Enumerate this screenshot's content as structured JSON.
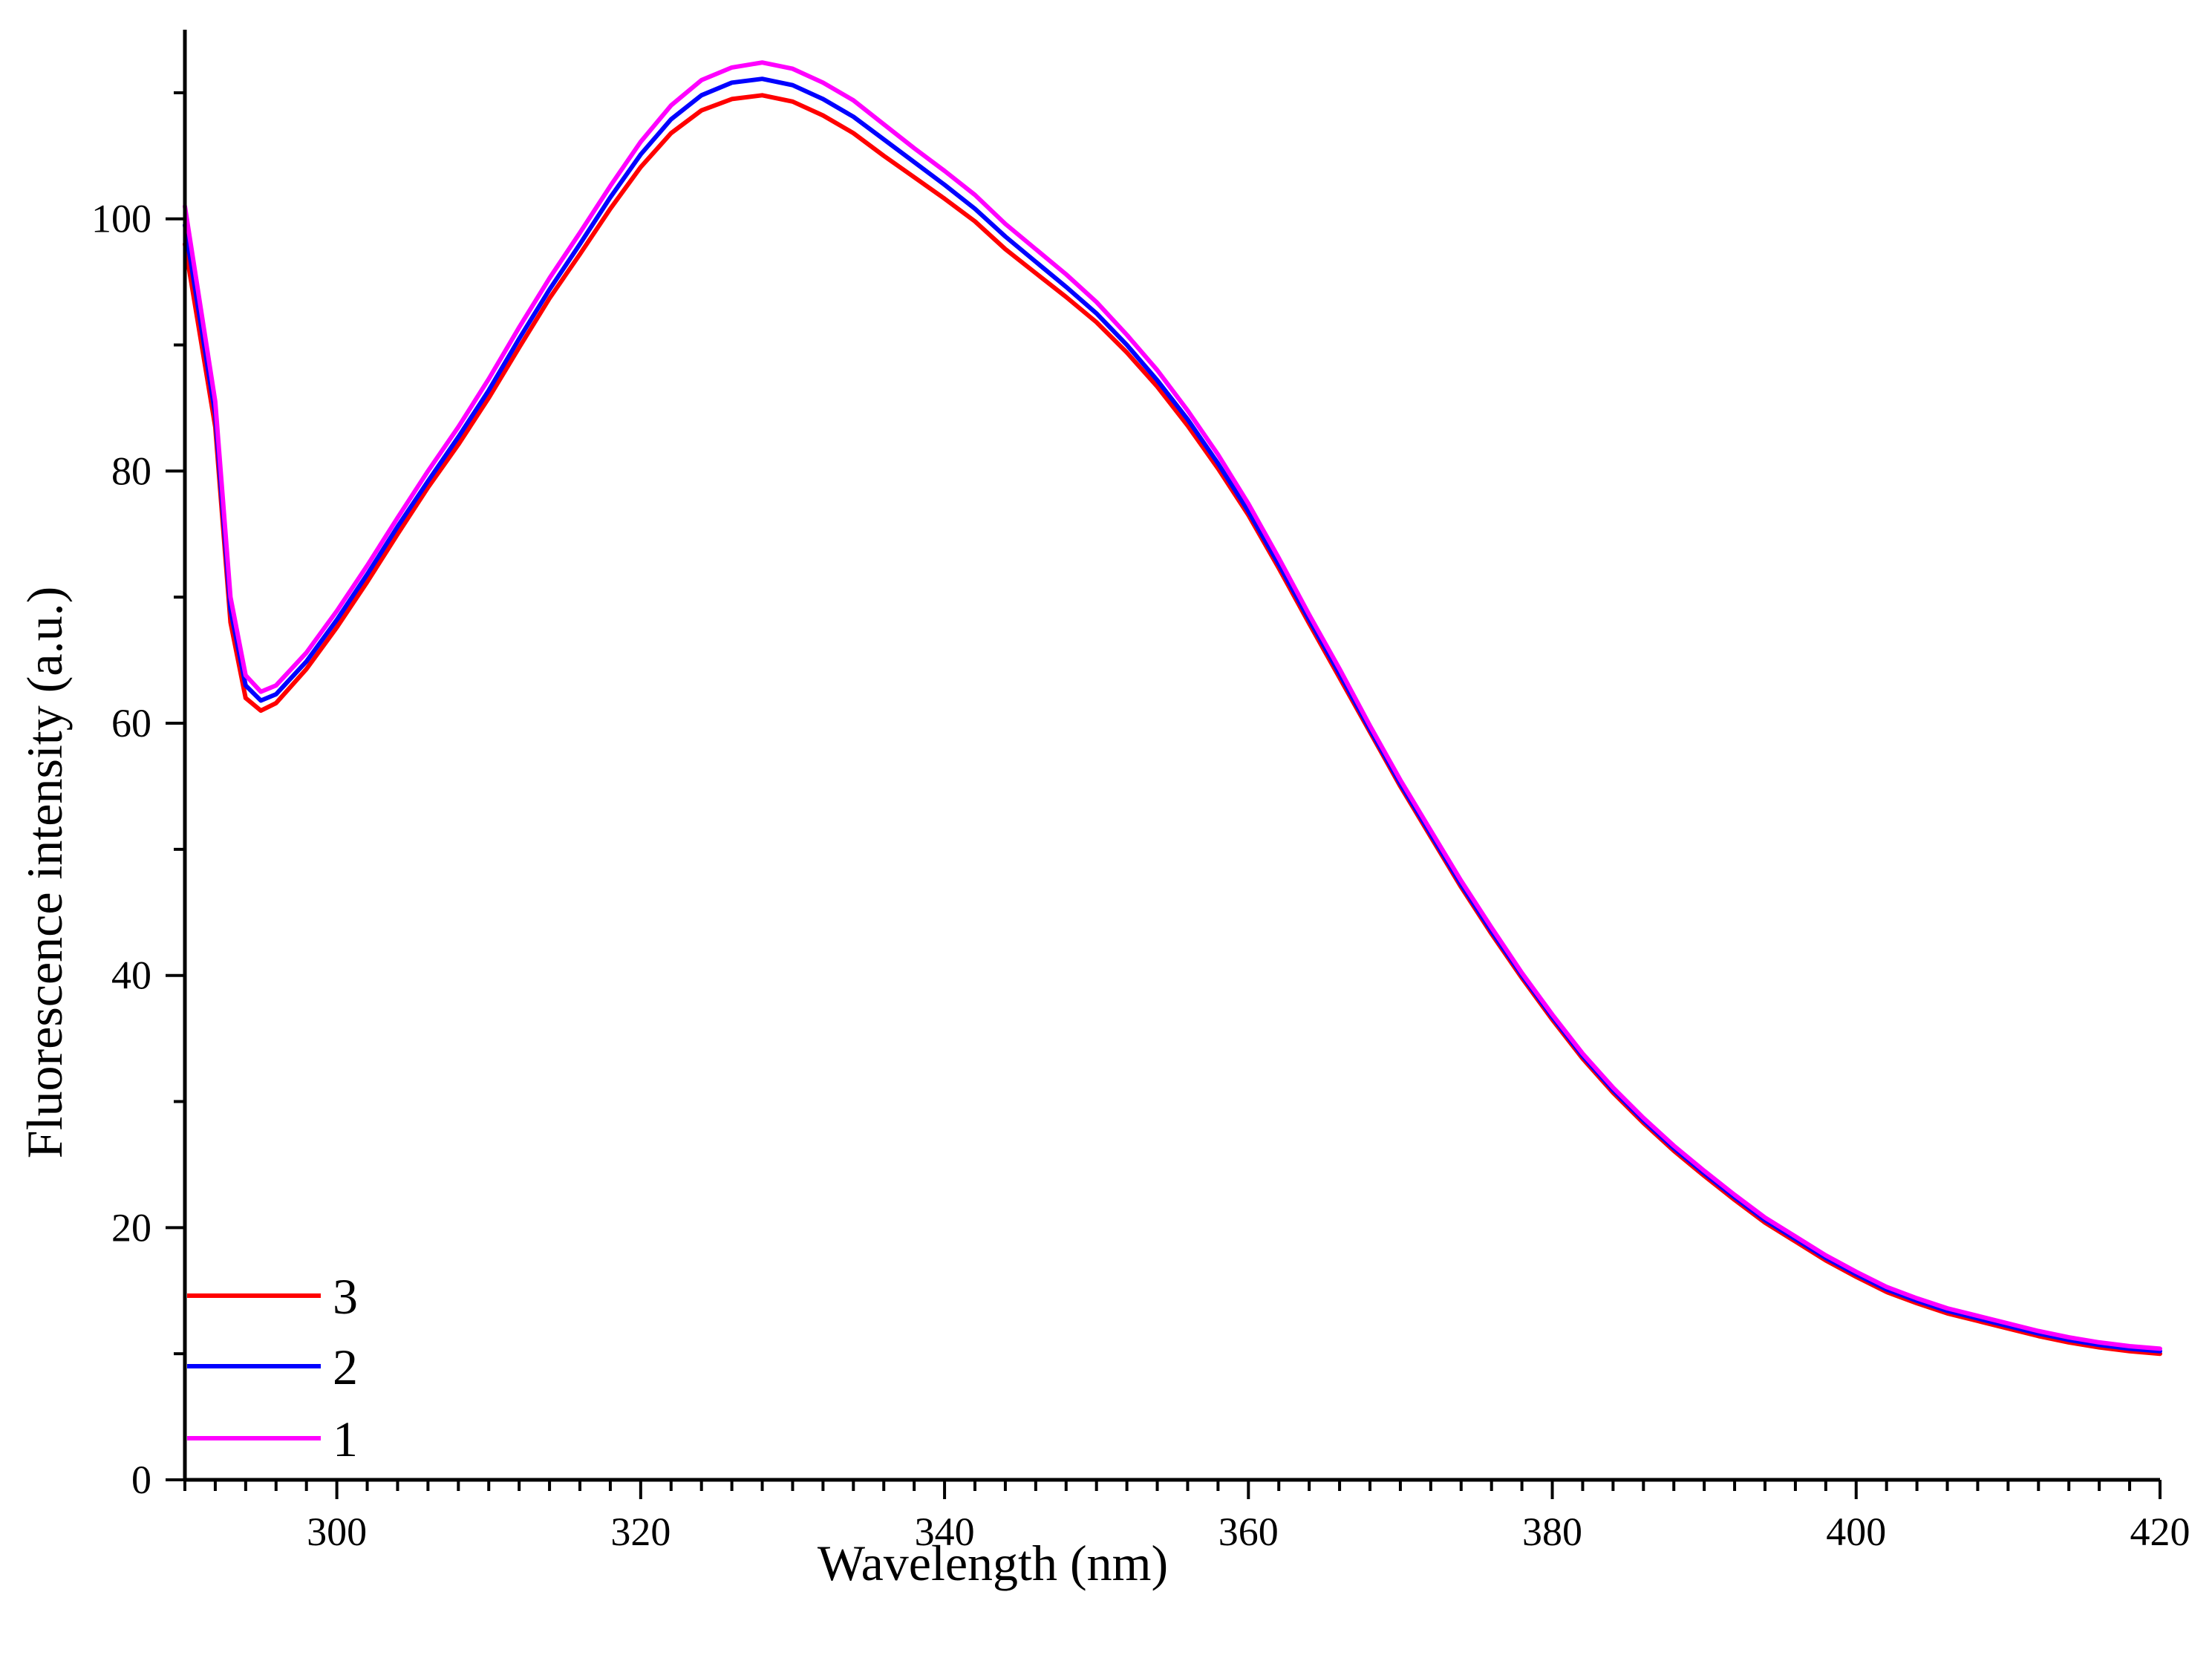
{
  "chart_data": {
    "type": "line",
    "title": "",
    "xlabel": "Wavelength (nm)",
    "ylabel": "Fluorescence intensity (a.u.)",
    "xlim": [
      290,
      420
    ],
    "ylim": [
      0,
      115
    ],
    "x_ticks": [
      300,
      320,
      340,
      360,
      380,
      400,
      420
    ],
    "y_ticks": [
      0,
      20,
      40,
      60,
      80,
      100
    ],
    "x_minor_step": 2,
    "y_minor_step": 10,
    "grid": false,
    "legend_position": "bottom-left",
    "legend_order": [
      "3",
      "2",
      "1"
    ],
    "x": [
      290,
      292,
      293,
      294,
      295,
      296,
      298,
      300,
      302,
      304,
      306,
      308,
      310,
      312,
      314,
      316,
      318,
      320,
      322,
      324,
      326,
      328,
      330,
      332,
      334,
      336,
      338,
      340,
      342,
      344,
      346,
      348,
      350,
      352,
      354,
      356,
      358,
      360,
      362,
      364,
      366,
      368,
      370,
      372,
      374,
      376,
      378,
      380,
      382,
      384,
      386,
      388,
      390,
      392,
      394,
      396,
      398,
      400,
      402,
      404,
      406,
      408,
      410,
      412,
      414,
      416,
      418,
      420
    ],
    "series": [
      {
        "name": "3",
        "color": "#ff0000",
        "values": [
          98.0,
          83.5,
          68.0,
          62.0,
          61.0,
          61.6,
          64.3,
          67.6,
          71.2,
          75.0,
          78.7,
          82.1,
          85.8,
          89.8,
          93.7,
          97.2,
          100.8,
          104.1,
          106.8,
          108.6,
          109.5,
          109.8,
          109.3,
          108.2,
          106.8,
          105.0,
          103.3,
          101.6,
          99.8,
          97.6,
          95.7,
          93.8,
          91.8,
          89.4,
          86.7,
          83.6,
          80.2,
          76.5,
          72.3,
          67.9,
          63.6,
          59.3,
          55.0,
          51.0,
          47.0,
          43.3,
          39.8,
          36.5,
          33.4,
          30.7,
          28.3,
          26.1,
          24.1,
          22.2,
          20.4,
          18.9,
          17.4,
          16.1,
          14.9,
          14.0,
          13.2,
          12.6,
          12.0,
          11.4,
          10.9,
          10.5,
          10.2,
          10.0
        ]
      },
      {
        "name": "2",
        "color": "#0000ff",
        "values": [
          99.5,
          84.5,
          69.0,
          63.0,
          61.8,
          62.3,
          64.9,
          68.2,
          71.8,
          75.6,
          79.2,
          82.7,
          86.4,
          90.5,
          94.4,
          98.0,
          101.7,
          105.1,
          107.9,
          109.8,
          110.8,
          111.1,
          110.6,
          109.5,
          108.1,
          106.3,
          104.5,
          102.7,
          100.8,
          98.6,
          96.6,
          94.6,
          92.5,
          90.0,
          87.2,
          84.1,
          80.6,
          76.8,
          72.6,
          68.2,
          63.9,
          59.5,
          55.2,
          51.2,
          47.2,
          43.5,
          40.0,
          36.7,
          33.6,
          30.9,
          28.5,
          26.3,
          24.3,
          22.4,
          20.6,
          19.1,
          17.6,
          16.3,
          15.1,
          14.2,
          13.4,
          12.8,
          12.2,
          11.6,
          11.1,
          10.7,
          10.4,
          10.2
        ]
      },
      {
        "name": "1",
        "color": "#ff00ff",
        "values": [
          101.0,
          85.5,
          70.0,
          63.8,
          62.5,
          63.0,
          65.6,
          68.9,
          72.5,
          76.3,
          80.0,
          83.5,
          87.3,
          91.4,
          95.3,
          98.9,
          102.6,
          106.1,
          109.0,
          111.0,
          112.0,
          112.4,
          111.9,
          110.8,
          109.4,
          107.5,
          105.6,
          103.8,
          101.9,
          99.6,
          97.6,
          95.6,
          93.4,
          90.8,
          88.0,
          84.8,
          81.3,
          77.4,
          73.1,
          68.6,
          64.3,
          59.8,
          55.5,
          51.5,
          47.5,
          43.8,
          40.2,
          36.9,
          33.8,
          31.1,
          28.7,
          26.5,
          24.5,
          22.6,
          20.8,
          19.3,
          17.8,
          16.5,
          15.3,
          14.4,
          13.6,
          13.0,
          12.4,
          11.8,
          11.3,
          10.9,
          10.6,
          10.4
        ]
      }
    ]
  }
}
